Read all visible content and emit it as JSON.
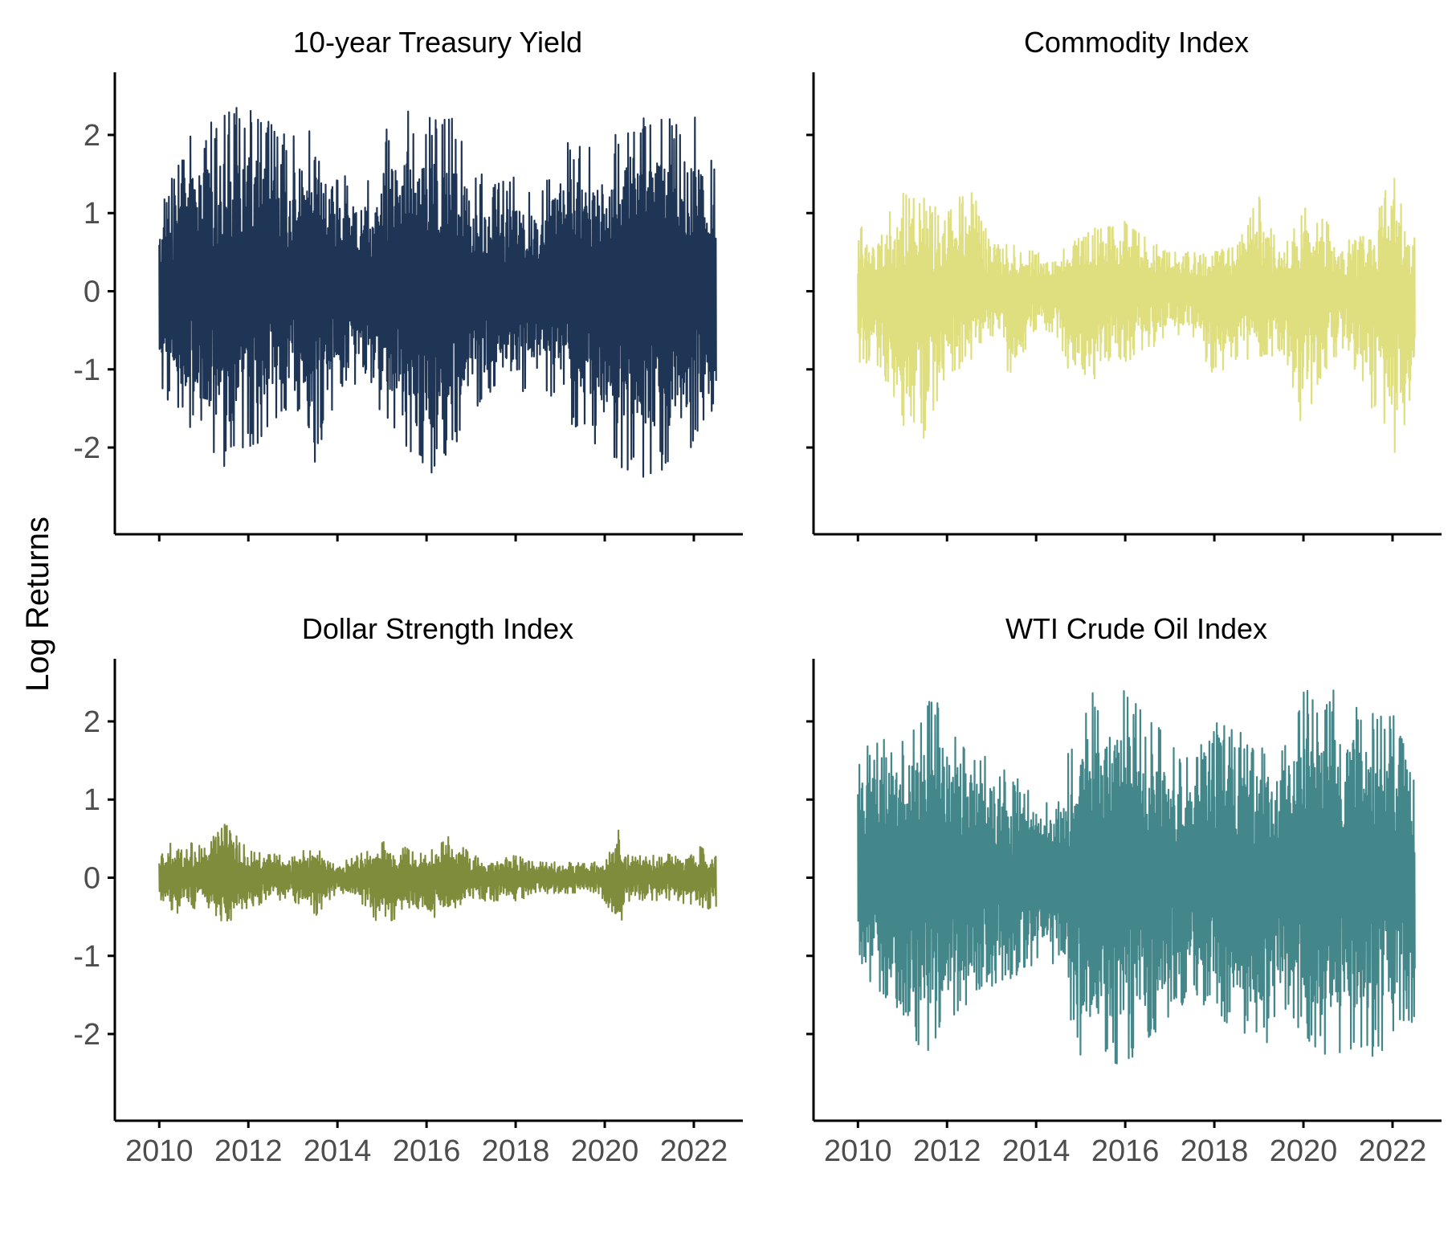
{
  "ylabel": "Log Returns",
  "chart_data": [
    {
      "type": "line",
      "title": "10-year Treasury Yield",
      "xlabel": "",
      "ylabel": "Log Returns",
      "xlim": [
        2009.4,
        2023.1
      ],
      "ylim": [
        -2.75,
        2.75
      ],
      "xticks": [
        2010,
        2012,
        2014,
        2016,
        2018,
        2020,
        2022
      ],
      "yticks": [
        -2,
        -1,
        0,
        1,
        2
      ],
      "tick_labels_y": [
        "-2",
        "-1",
        "0",
        "1",
        "2"
      ],
      "tick_labels_x": [],
      "color": "#1f3555",
      "x_start": 2010.0,
      "x_end": 2022.5,
      "amplitude_envelope": [
        {
          "x": 2010.0,
          "upper": 1.0,
          "lower": -1.2
        },
        {
          "x": 2010.5,
          "upper": 1.9,
          "lower": -1.7
        },
        {
          "x": 2011.0,
          "upper": 2.1,
          "lower": -1.9
        },
        {
          "x": 2011.5,
          "upper": 2.3,
          "lower": -2.3
        },
        {
          "x": 2012.0,
          "upper": 2.4,
          "lower": -2.1
        },
        {
          "x": 2012.5,
          "upper": 2.3,
          "lower": -1.8
        },
        {
          "x": 2013.0,
          "upper": 2.0,
          "lower": -1.4
        },
        {
          "x": 2013.5,
          "upper": 2.4,
          "lower": -2.2
        },
        {
          "x": 2014.0,
          "upper": 1.6,
          "lower": -1.3
        },
        {
          "x": 2014.5,
          "upper": 1.4,
          "lower": -1.3
        },
        {
          "x": 2015.0,
          "upper": 2.0,
          "lower": -1.8
        },
        {
          "x": 2015.5,
          "upper": 2.4,
          "lower": -2.2
        },
        {
          "x": 2016.0,
          "upper": 2.3,
          "lower": -2.4
        },
        {
          "x": 2016.5,
          "upper": 2.4,
          "lower": -2.2
        },
        {
          "x": 2017.0,
          "upper": 1.6,
          "lower": -1.6
        },
        {
          "x": 2017.5,
          "upper": 1.4,
          "lower": -1.3
        },
        {
          "x": 2018.0,
          "upper": 1.5,
          "lower": -1.4
        },
        {
          "x": 2018.5,
          "upper": 1.2,
          "lower": -1.1
        },
        {
          "x": 2019.0,
          "upper": 1.9,
          "lower": -1.6
        },
        {
          "x": 2019.5,
          "upper": 2.0,
          "lower": -1.8
        },
        {
          "x": 2020.0,
          "upper": 1.8,
          "lower": -2.1
        },
        {
          "x": 2020.5,
          "upper": 2.3,
          "lower": -2.4
        },
        {
          "x": 2021.0,
          "upper": 2.3,
          "lower": -2.4
        },
        {
          "x": 2021.5,
          "upper": 2.2,
          "lower": -2.3
        },
        {
          "x": 2022.0,
          "upper": 2.4,
          "lower": -2.1
        },
        {
          "x": 2022.5,
          "upper": 1.5,
          "lower": -1.6
        }
      ]
    },
    {
      "type": "line",
      "title": "Commodity Index",
      "xlabel": "",
      "ylabel": "",
      "xlim": [
        2009.4,
        2023.1
      ],
      "ylim": [
        -2.75,
        2.75
      ],
      "xticks": [
        2010,
        2012,
        2014,
        2016,
        2018,
        2020,
        2022
      ],
      "yticks": [
        -2,
        -1,
        0,
        1,
        2
      ],
      "tick_labels_y": [],
      "tick_labels_x": [],
      "color": "#dfdf7f",
      "x_start": 2010.0,
      "x_end": 2022.5,
      "amplitude_envelope": [
        {
          "x": 2010.0,
          "upper": 0.9,
          "lower": -0.9
        },
        {
          "x": 2010.5,
          "upper": 0.8,
          "lower": -1.0
        },
        {
          "x": 2011.0,
          "upper": 1.3,
          "lower": -1.8
        },
        {
          "x": 2011.5,
          "upper": 1.2,
          "lower": -1.9
        },
        {
          "x": 2012.0,
          "upper": 1.0,
          "lower": -1.2
        },
        {
          "x": 2012.5,
          "upper": 1.4,
          "lower": -0.9
        },
        {
          "x": 2013.0,
          "upper": 0.6,
          "lower": -0.6
        },
        {
          "x": 2013.5,
          "upper": 0.6,
          "lower": -1.2
        },
        {
          "x": 2014.0,
          "upper": 0.5,
          "lower": -0.5
        },
        {
          "x": 2014.5,
          "upper": 0.5,
          "lower": -0.6
        },
        {
          "x": 2015.0,
          "upper": 0.7,
          "lower": -1.6
        },
        {
          "x": 2015.5,
          "upper": 0.9,
          "lower": -0.9
        },
        {
          "x": 2016.0,
          "upper": 0.9,
          "lower": -0.9
        },
        {
          "x": 2016.5,
          "upper": 0.7,
          "lower": -0.8
        },
        {
          "x": 2017.0,
          "upper": 0.5,
          "lower": -0.6
        },
        {
          "x": 2017.5,
          "upper": 0.5,
          "lower": -0.6
        },
        {
          "x": 2018.0,
          "upper": 0.5,
          "lower": -1.1
        },
        {
          "x": 2018.5,
          "upper": 0.6,
          "lower": -0.9
        },
        {
          "x": 2019.0,
          "upper": 1.3,
          "lower": -0.9
        },
        {
          "x": 2019.5,
          "upper": 0.6,
          "lower": -0.8
        },
        {
          "x": 2020.0,
          "upper": 1.1,
          "lower": -1.8
        },
        {
          "x": 2020.5,
          "upper": 0.9,
          "lower": -1.0
        },
        {
          "x": 2021.0,
          "upper": 0.7,
          "lower": -0.8
        },
        {
          "x": 2021.5,
          "upper": 0.7,
          "lower": -1.5
        },
        {
          "x": 2022.0,
          "upper": 1.6,
          "lower": -2.1
        },
        {
          "x": 2022.5,
          "upper": 0.7,
          "lower": -1.8
        }
      ]
    },
    {
      "type": "line",
      "title": "Dollar Strength Index",
      "xlabel": "",
      "ylabel": "Log Returns",
      "xlim": [
        2009.4,
        2023.1
      ],
      "ylim": [
        -2.75,
        2.75
      ],
      "xticks": [
        2010,
        2012,
        2014,
        2016,
        2018,
        2020,
        2022
      ],
      "yticks": [
        -2,
        -1,
        0,
        1,
        2
      ],
      "tick_labels_y": [
        "-2",
        "-1",
        "0",
        "1",
        "2"
      ],
      "tick_labels_x": [
        "2010",
        "2012",
        "2014",
        "2016",
        "2018",
        "2020",
        "2022"
      ],
      "color": "#7f8c3c",
      "x_start": 2010.0,
      "x_end": 2022.5,
      "amplitude_envelope": [
        {
          "x": 2010.0,
          "upper": 0.4,
          "lower": -0.3
        },
        {
          "x": 2010.5,
          "upper": 0.5,
          "lower": -0.5
        },
        {
          "x": 2011.0,
          "upper": 0.4,
          "lower": -0.4
        },
        {
          "x": 2011.5,
          "upper": 0.7,
          "lower": -0.6
        },
        {
          "x": 2012.0,
          "upper": 0.4,
          "lower": -0.4
        },
        {
          "x": 2012.5,
          "upper": 0.3,
          "lower": -0.3
        },
        {
          "x": 2013.0,
          "upper": 0.3,
          "lower": -0.3
        },
        {
          "x": 2013.5,
          "upper": 0.4,
          "lower": -0.5
        },
        {
          "x": 2014.0,
          "upper": 0.2,
          "lower": -0.2
        },
        {
          "x": 2014.5,
          "upper": 0.3,
          "lower": -0.3
        },
        {
          "x": 2015.0,
          "upper": 0.5,
          "lower": -0.7
        },
        {
          "x": 2015.5,
          "upper": 0.4,
          "lower": -0.4
        },
        {
          "x": 2016.0,
          "upper": 0.3,
          "lower": -0.6
        },
        {
          "x": 2016.5,
          "upper": 0.6,
          "lower": -0.5
        },
        {
          "x": 2017.0,
          "upper": 0.3,
          "lower": -0.3
        },
        {
          "x": 2017.5,
          "upper": 0.2,
          "lower": -0.3
        },
        {
          "x": 2018.0,
          "upper": 0.3,
          "lower": -0.3
        },
        {
          "x": 2018.5,
          "upper": 0.2,
          "lower": -0.2
        },
        {
          "x": 2019.0,
          "upper": 0.2,
          "lower": -0.2
        },
        {
          "x": 2019.5,
          "upper": 0.2,
          "lower": -0.2
        },
        {
          "x": 2020.0,
          "upper": 0.2,
          "lower": -0.3
        },
        {
          "x": 2020.3,
          "upper": 0.7,
          "lower": -0.8
        },
        {
          "x": 2020.5,
          "upper": 0.3,
          "lower": -0.3
        },
        {
          "x": 2021.0,
          "upper": 0.3,
          "lower": -0.3
        },
        {
          "x": 2021.5,
          "upper": 0.3,
          "lower": -0.3
        },
        {
          "x": 2022.0,
          "upper": 0.4,
          "lower": -0.4
        },
        {
          "x": 2022.5,
          "upper": 0.4,
          "lower": -0.4
        }
      ]
    },
    {
      "type": "line",
      "title": "WTI Crude Oil Index",
      "xlabel": "",
      "ylabel": "",
      "xlim": [
        2009.4,
        2023.1
      ],
      "ylim": [
        -2.75,
        2.75
      ],
      "xticks": [
        2010,
        2012,
        2014,
        2016,
        2018,
        2020,
        2022
      ],
      "yticks": [
        -2,
        -1,
        0,
        1,
        2
      ],
      "tick_labels_y": [],
      "tick_labels_x": [
        "2010",
        "2012",
        "2014",
        "2016",
        "2018",
        "2020",
        "2022"
      ],
      "color": "#43878b",
      "x_start": 2010.0,
      "x_end": 2022.5,
      "amplitude_envelope": [
        {
          "x": 2010.0,
          "upper": 1.6,
          "lower": -1.0
        },
        {
          "x": 2010.5,
          "upper": 1.8,
          "lower": -1.6
        },
        {
          "x": 2011.0,
          "upper": 1.8,
          "lower": -1.8
        },
        {
          "x": 2011.5,
          "upper": 2.3,
          "lower": -2.3
        },
        {
          "x": 2012.0,
          "upper": 2.2,
          "lower": -2.0
        },
        {
          "x": 2012.5,
          "upper": 1.8,
          "lower": -1.7
        },
        {
          "x": 2013.0,
          "upper": 1.6,
          "lower": -1.4
        },
        {
          "x": 2013.5,
          "upper": 1.3,
          "lower": -1.3
        },
        {
          "x": 2014.0,
          "upper": 1.1,
          "lower": -1.1
        },
        {
          "x": 2014.5,
          "upper": 1.0,
          "lower": -1.1
        },
        {
          "x": 2015.0,
          "upper": 2.4,
          "lower": -2.4
        },
        {
          "x": 2015.5,
          "upper": 2.4,
          "lower": -2.4
        },
        {
          "x": 2016.0,
          "upper": 2.4,
          "lower": -2.4
        },
        {
          "x": 2016.5,
          "upper": 2.4,
          "lower": -2.2
        },
        {
          "x": 2017.0,
          "upper": 1.7,
          "lower": -1.8
        },
        {
          "x": 2017.5,
          "upper": 1.5,
          "lower": -1.5
        },
        {
          "x": 2018.0,
          "upper": 2.0,
          "lower": -1.8
        },
        {
          "x": 2018.5,
          "upper": 1.9,
          "lower": -1.9
        },
        {
          "x": 2019.0,
          "upper": 1.8,
          "lower": -2.3
        },
        {
          "x": 2019.5,
          "upper": 1.8,
          "lower": -1.8
        },
        {
          "x": 2020.0,
          "upper": 2.4,
          "lower": -2.0
        },
        {
          "x": 2020.5,
          "upper": 2.4,
          "lower": -2.4
        },
        {
          "x": 2021.0,
          "upper": 2.4,
          "lower": -2.2
        },
        {
          "x": 2021.5,
          "upper": 2.2,
          "lower": -2.3
        },
        {
          "x": 2022.0,
          "upper": 2.2,
          "lower": -2.2
        },
        {
          "x": 2022.5,
          "upper": 1.3,
          "lower": -1.8
        }
      ]
    }
  ]
}
